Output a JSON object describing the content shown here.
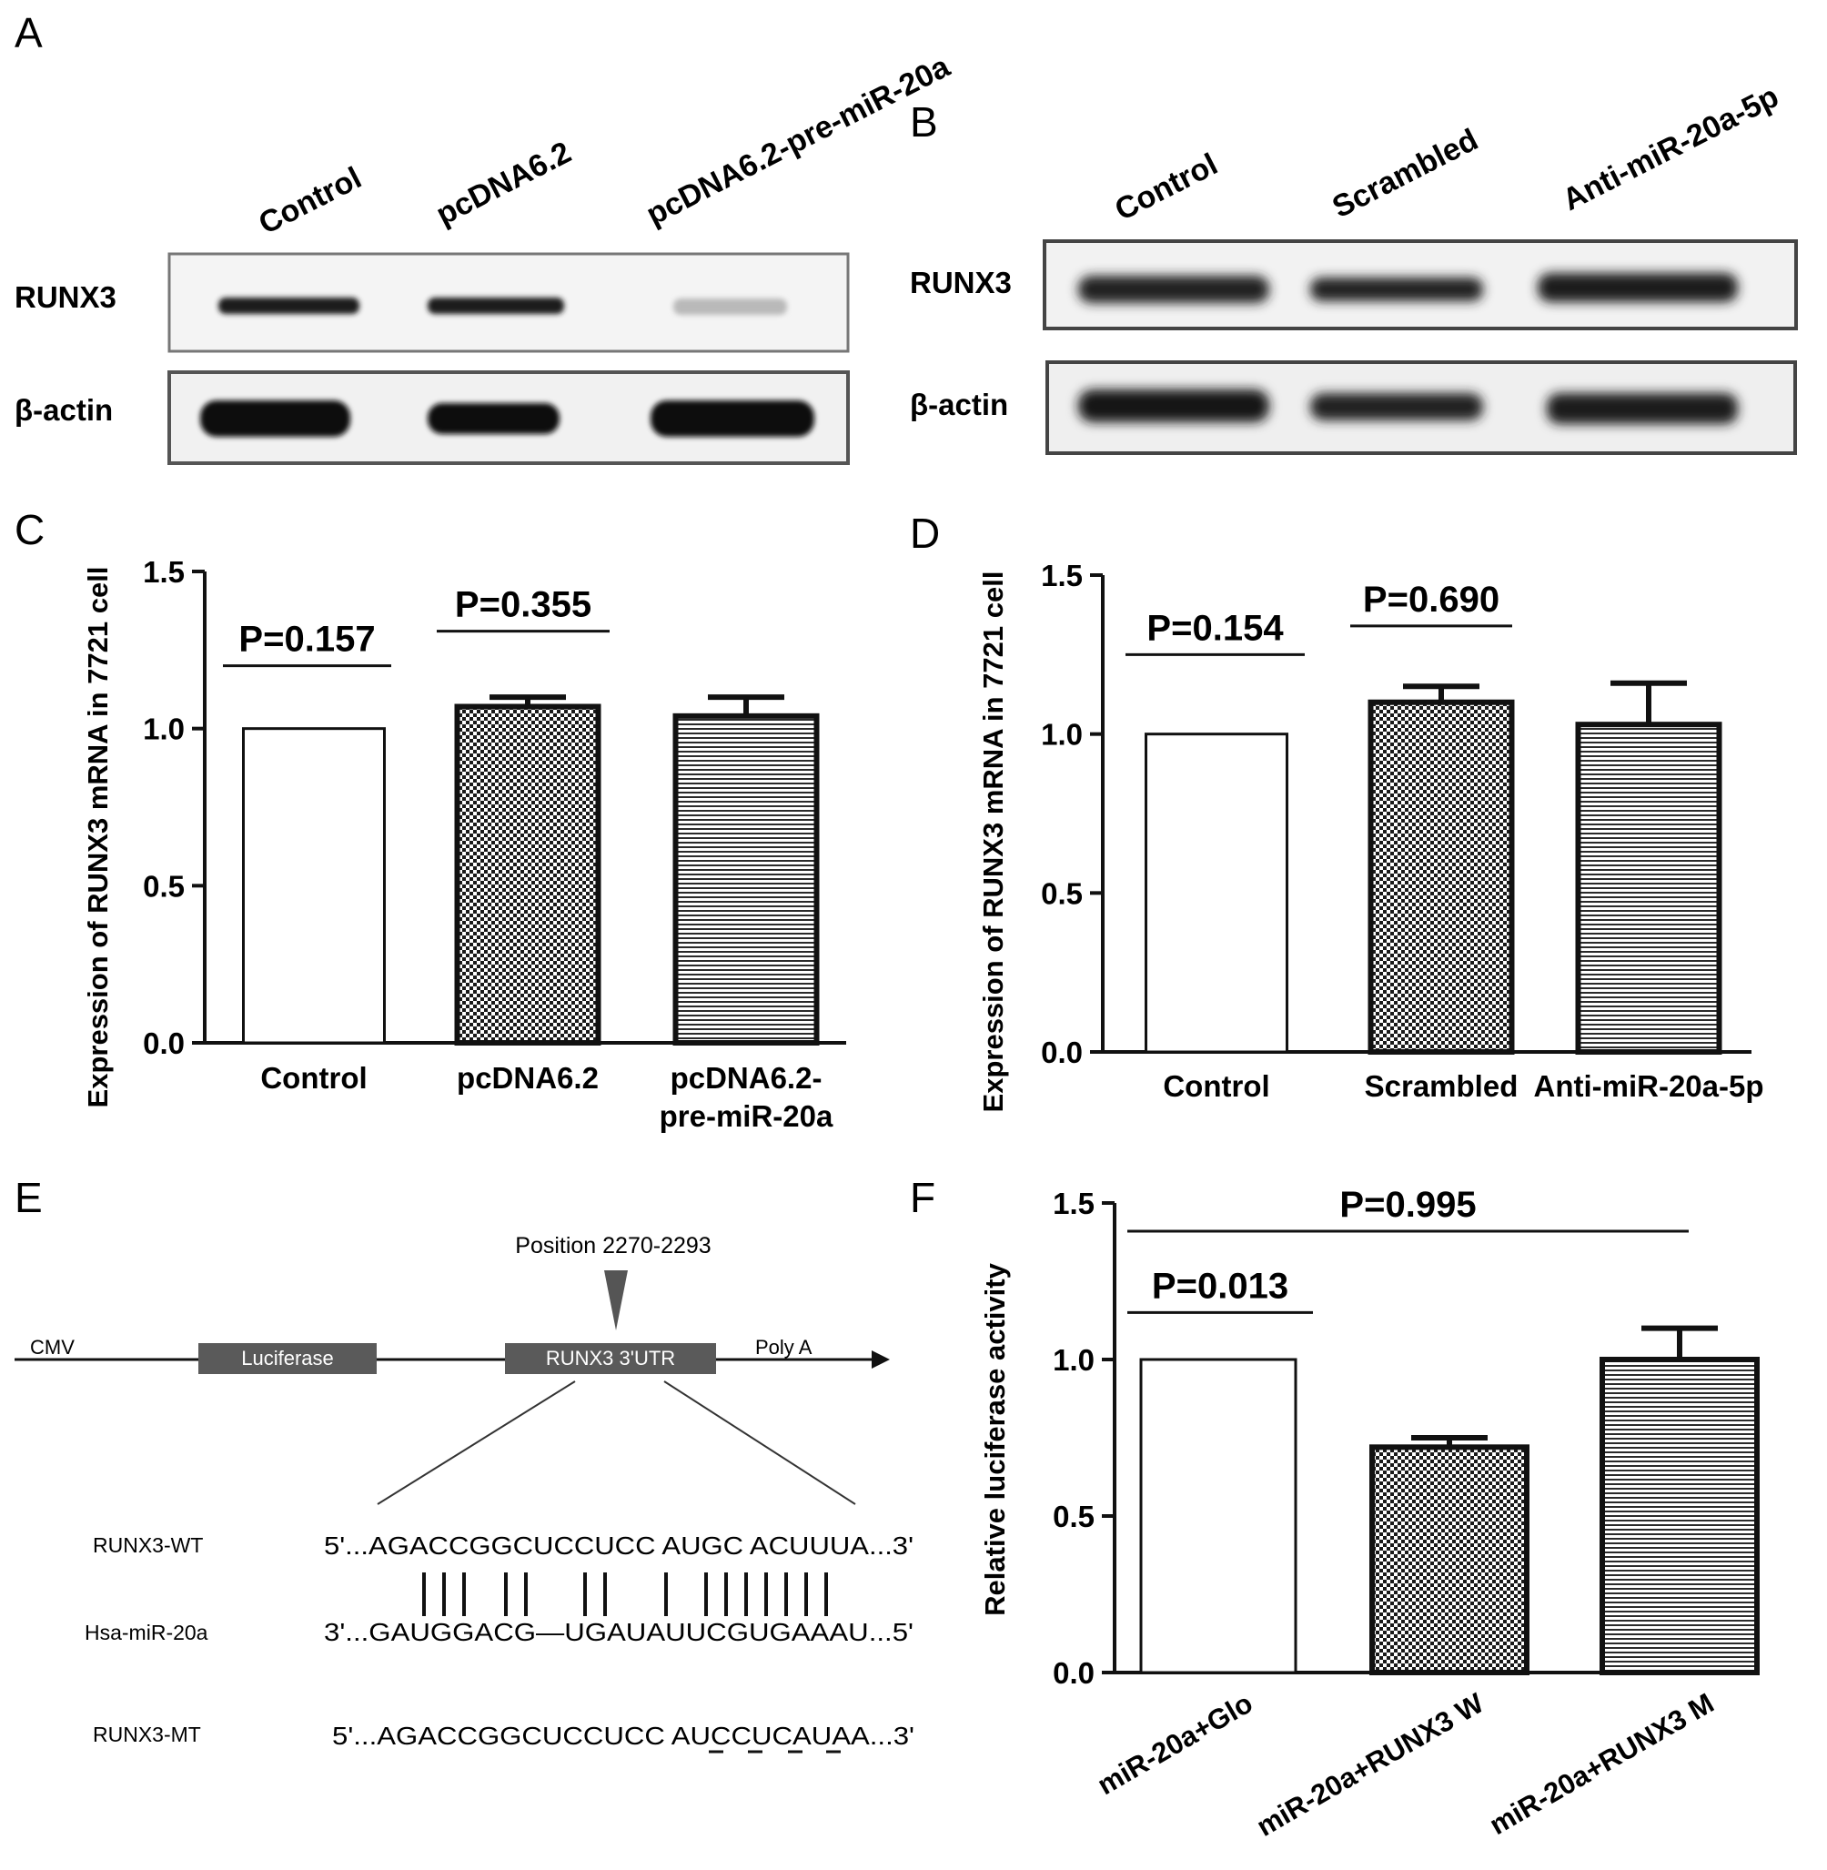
{
  "panel_letters": [
    "A",
    "B",
    "C",
    "D",
    "E",
    "F"
  ],
  "blot_a": {
    "lanes": [
      "Control",
      "pcDNA6.2",
      "pcDNA6.2-pre-miR-20a"
    ],
    "rows": [
      "RUNX3",
      "β-actin"
    ]
  },
  "blot_b": {
    "lanes": [
      "Control",
      "Scrambled",
      "Anti-miR-20a-5p"
    ],
    "rows": [
      "RUNX3",
      "β-actin"
    ]
  },
  "chart_data": [
    {
      "panel": "C",
      "type": "bar",
      "categories": [
        "Control",
        "pcDNA6.2",
        "pcDNA6.2-pre-miR-20a"
      ],
      "category_lines": [
        [
          "Control"
        ],
        [
          "pcDNA6.2"
        ],
        [
          "pcDNA6.2-",
          "pre-miR-20a"
        ]
      ],
      "values": [
        1.0,
        1.07,
        1.04
      ],
      "errors": [
        0.0,
        0.03,
        0.06
      ],
      "patterns": [
        "white",
        "checker",
        "hlines"
      ],
      "ylabel": "Expression of RUNX3 mRNA in 7721 cell",
      "ylim": [
        0,
        1.5
      ],
      "yticks": [
        "0.0",
        "0.5",
        "1.0",
        "1.5"
      ],
      "grid": false,
      "comparisons": [
        {
          "from": 0,
          "to": 1,
          "label": "P=0.157",
          "y": 1.2
        },
        {
          "from": 1,
          "to": 2,
          "label": "P=0.355",
          "y": 1.31
        }
      ]
    },
    {
      "panel": "D",
      "type": "bar",
      "categories": [
        "Control",
        "Scrambled",
        "Anti-miR-20a-5p"
      ],
      "category_lines": [
        [
          "Control"
        ],
        [
          "Scrambled"
        ],
        [
          "Anti-miR-20a-5p"
        ]
      ],
      "values": [
        1.0,
        1.1,
        1.03
      ],
      "errors": [
        0.0,
        0.05,
        0.13
      ],
      "patterns": [
        "white",
        "checker",
        "hlines"
      ],
      "ylabel": "Expression of RUNX3 mRNA in 7721 cell",
      "ylim": [
        0,
        1.5
      ],
      "yticks": [
        "0.0",
        "0.5",
        "1.0",
        "1.5"
      ],
      "grid": false,
      "comparisons": [
        {
          "from": 0,
          "to": 1,
          "label": "P=0.154",
          "y": 1.25
        },
        {
          "from": 1,
          "to": 2,
          "label": "P=0.690",
          "y": 1.34
        }
      ]
    },
    {
      "panel": "F",
      "type": "bar",
      "categories": [
        "miR-20a+Glo",
        "miR-20a+RUNX3 W",
        "miR-20a+RUNX3 M"
      ],
      "category_lines": [
        [
          "miR-20a+Glo"
        ],
        [
          "miR-20a+RUNX3 W"
        ],
        [
          "miR-20a+RUNX3 M"
        ]
      ],
      "values": [
        1.0,
        0.72,
        1.0
      ],
      "errors": [
        0.0,
        0.03,
        0.1
      ],
      "patterns": [
        "white",
        "checker",
        "hlines"
      ],
      "ylabel": "Relative luciferase activity",
      "ylim": [
        0,
        1.5
      ],
      "yticks": [
        "0.0",
        "0.5",
        "1.0",
        "1.5"
      ],
      "grid": false,
      "rotated_labels": true,
      "comparisons": [
        {
          "from": 0,
          "to": 1,
          "label": "P=0.013",
          "y": 1.15
        },
        {
          "from": 0,
          "to": 2,
          "label": "P=0.995",
          "y": 1.41
        }
      ]
    }
  ],
  "construct": {
    "position_label": "Position 2270-2293",
    "elements": [
      "CMV",
      "Luciferase",
      "RUNX3 3'UTR",
      "Poly A"
    ],
    "sequences": [
      {
        "name": "RUNX3-WT",
        "seq": "5'...AGACCGGCUCCUCC AUGC ACUUUA...3'"
      },
      {
        "name": "Hsa-miR-20a",
        "seq": "3'...GAUGGACG—UGAUAUUCGUGAAAU...5'"
      },
      {
        "name": "RUNX3-MT",
        "seq": "5'...AGACCGGCUCCUCC AUCCUCAUAA...3'"
      }
    ]
  }
}
